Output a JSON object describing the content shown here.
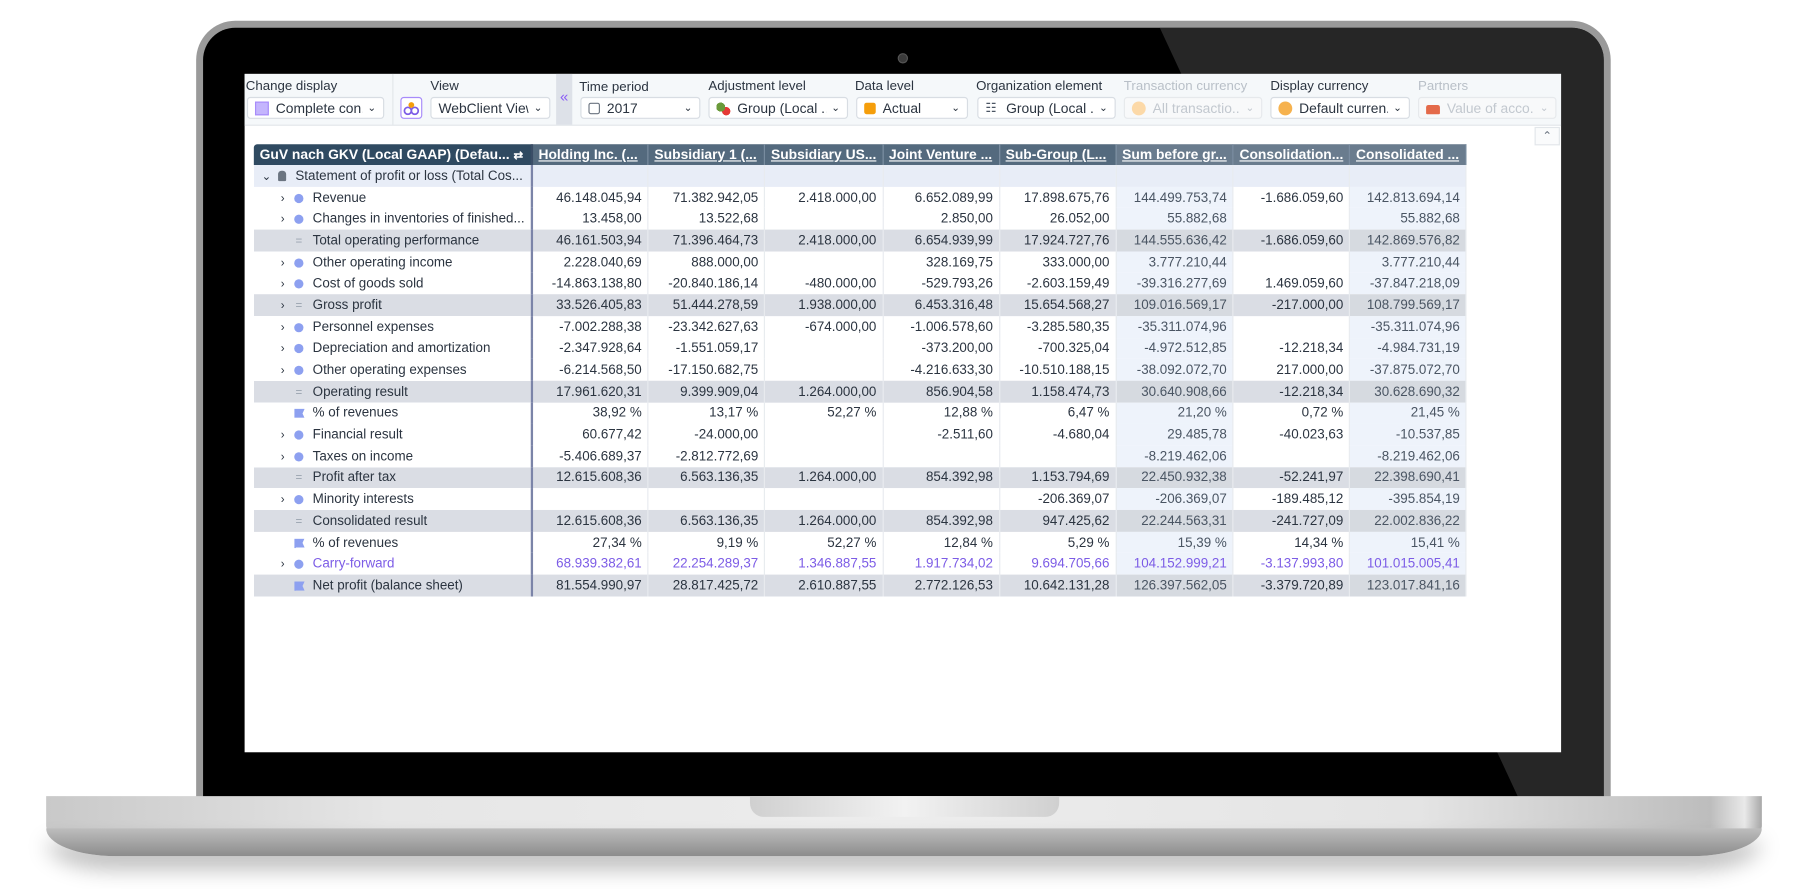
{
  "toolbar": {
    "change_display": {
      "label": "Change display",
      "value": "Complete con..."
    },
    "view": {
      "label": "View",
      "value": "WebClient View"
    },
    "time_period": {
      "label": "Time period",
      "value": "2017"
    },
    "adjustment_level": {
      "label": "Adjustment level",
      "value": "Group (Local ..."
    },
    "data_level": {
      "label": "Data level",
      "value": "Actual"
    },
    "organization_element": {
      "label": "Organization element",
      "value": "Group (Local ..."
    },
    "transaction_currency": {
      "label": "Transaction currency",
      "value": "All transactio..."
    },
    "display_currency": {
      "label": "Display currency",
      "value": "Default curren..."
    },
    "partners": {
      "label": "Partners",
      "value": "Value of acco..."
    },
    "collapse_glyph": "«",
    "scroll_up_glyph": "⌃"
  },
  "grid": {
    "columns": [
      "GuV nach GKV (Local GAAP) (Defau...",
      "Holding Inc. (...",
      "Subsidiary 1 (...",
      "Subsidiary US...",
      "Joint Venture ...",
      "Sub-Group (L...",
      "Sum before gr...",
      "Consolidation...",
      "Consolidated ..."
    ],
    "rows": [
      {
        "label": "Statement of profit or loss (Total Cos...",
        "values": [
          "",
          "",
          "",
          "",
          "",
          "",
          "",
          ""
        ]
      },
      {
        "label": "Revenue",
        "values": [
          "46.148.045,94",
          "71.382.942,05",
          "2.418.000,00",
          "6.652.089,99",
          "17.898.675,76",
          "144.499.753,74",
          "-1.686.059,60",
          "142.813.694,14"
        ]
      },
      {
        "label": "Changes in inventories of finished...",
        "values": [
          "13.458,00",
          "13.522,68",
          "",
          "2.850,00",
          "26.052,00",
          "55.882,68",
          "",
          "55.882,68"
        ]
      },
      {
        "label": "Total operating performance",
        "values": [
          "46.161.503,94",
          "71.396.464,73",
          "2.418.000,00",
          "6.654.939,99",
          "17.924.727,76",
          "144.555.636,42",
          "-1.686.059,60",
          "142.869.576,82"
        ]
      },
      {
        "label": "Other operating income",
        "values": [
          "2.228.040,69",
          "888.000,00",
          "",
          "328.169,75",
          "333.000,00",
          "3.777.210,44",
          "",
          "3.777.210,44"
        ]
      },
      {
        "label": "Cost of goods sold",
        "values": [
          "-14.863.138,80",
          "-20.840.186,14",
          "-480.000,00",
          "-529.793,26",
          "-2.603.159,49",
          "-39.316.277,69",
          "1.469.059,60",
          "-37.847.218,09"
        ]
      },
      {
        "label": "Gross profit",
        "values": [
          "33.526.405,83",
          "51.444.278,59",
          "1.938.000,00",
          "6.453.316,48",
          "15.654.568,27",
          "109.016.569,17",
          "-217.000,00",
          "108.799.569,17"
        ]
      },
      {
        "label": "Personnel expenses",
        "values": [
          "-7.002.288,38",
          "-23.342.627,63",
          "-674.000,00",
          "-1.006.578,60",
          "-3.285.580,35",
          "-35.311.074,96",
          "",
          "-35.311.074,96"
        ]
      },
      {
        "label": "Depreciation and amortization",
        "values": [
          "-2.347.928,64",
          "-1.551.059,17",
          "",
          "-373.200,00",
          "-700.325,04",
          "-4.972.512,85",
          "-12.218,34",
          "-4.984.731,19"
        ]
      },
      {
        "label": "Other operating expenses",
        "values": [
          "-6.214.568,50",
          "-17.150.682,75",
          "",
          "-4.216.633,30",
          "-10.510.188,15",
          "-38.092.072,70",
          "217.000,00",
          "-37.875.072,70"
        ]
      },
      {
        "label": "Operating result",
        "values": [
          "17.961.620,31",
          "9.399.909,04",
          "1.264.000,00",
          "856.904,58",
          "1.158.474,73",
          "30.640.908,66",
          "-12.218,34",
          "30.628.690,32"
        ]
      },
      {
        "label": "% of revenues",
        "values": [
          "38,92 %",
          "13,17 %",
          "52,27 %",
          "12,88 %",
          "6,47 %",
          "21,20 %",
          "0,72 %",
          "21,45 %"
        ]
      },
      {
        "label": "Financial result",
        "values": [
          "60.677,42",
          "-24.000,00",
          "",
          "-2.511,60",
          "-4.680,04",
          "29.485,78",
          "-40.023,63",
          "-10.537,85"
        ]
      },
      {
        "label": "Taxes on income",
        "values": [
          "-5.406.689,37",
          "-2.812.772,69",
          "",
          "",
          "",
          "-8.219.462,06",
          "",
          "-8.219.462,06"
        ]
      },
      {
        "label": "Profit after tax",
        "values": [
          "12.615.608,36",
          "6.563.136,35",
          "1.264.000,00",
          "854.392,98",
          "1.153.794,69",
          "22.450.932,38",
          "-52.241,97",
          "22.398.690,41"
        ]
      },
      {
        "label": "Minority interests",
        "values": [
          "",
          "",
          "",
          "",
          "-206.369,07",
          "-206.369,07",
          "-189.485,12",
          "-395.854,19"
        ]
      },
      {
        "label": "Consolidated result",
        "values": [
          "12.615.608,36",
          "6.563.136,35",
          "1.264.000,00",
          "854.392,98",
          "947.425,62",
          "22.244.563,31",
          "-241.727,09",
          "22.002.836,22"
        ]
      },
      {
        "label": "% of revenues",
        "values": [
          "27,34 %",
          "9,19 %",
          "52,27 %",
          "12,84 %",
          "5,29 %",
          "15,39 %",
          "14,34 %",
          "15,41 %"
        ]
      },
      {
        "label": "Carry-forward",
        "values": [
          "68.939.382,61",
          "22.254.289,37",
          "1.346.887,55",
          "1.917.734,02",
          "9.694.705,66",
          "104.152.999,21",
          "-3.137.993,80",
          "101.015.005,41"
        ]
      },
      {
        "label": "Net profit (balance sheet)",
        "values": [
          "81.554.990,97",
          "28.817.425,72",
          "2.610.887,55",
          "2.772.126,53",
          "10.642.131,28",
          "126.397.562,05",
          "-3.379.720,89",
          "123.017.841,16"
        ]
      }
    ]
  },
  "colors": {
    "header_bg": "#546a7e",
    "first_header_bg": "#2f4a61",
    "total_row_bg": "#dadde4",
    "accent_purple": "#7c5ce6",
    "node_dot": "#8da0f0"
  }
}
